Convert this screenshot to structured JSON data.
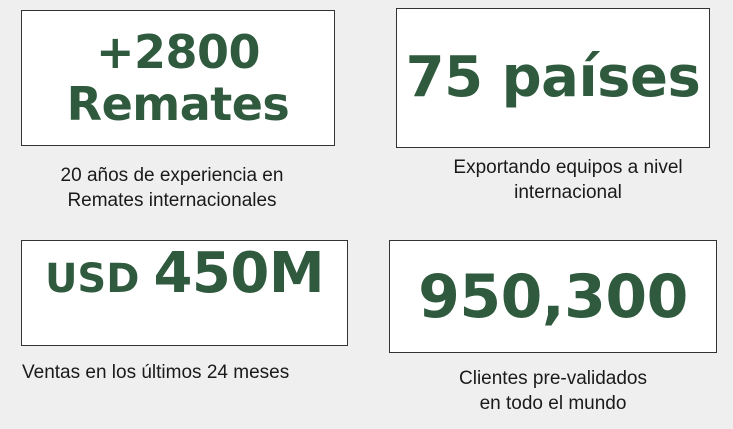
{
  "stats": [
    {
      "lines": [
        "+2800",
        "Remates"
      ],
      "caption": [
        "20 años de experiencia en",
        "Remates internacionales"
      ]
    },
    {
      "value": "75 países",
      "caption": [
        "Exportando equipos a nivel",
        "internacional"
      ]
    },
    {
      "prefix": "USD",
      "value": "450M",
      "caption": [
        "Ventas en los últimos 24 meses"
      ]
    },
    {
      "value": "950,300",
      "caption": [
        "Clientes pre-validados",
        "en todo el mundo"
      ]
    }
  ],
  "colors": {
    "accent": "#2f5a3e",
    "background": "#efefef",
    "box_background": "#ffffff",
    "border": "#333333",
    "caption_text": "#1a1a1a"
  }
}
